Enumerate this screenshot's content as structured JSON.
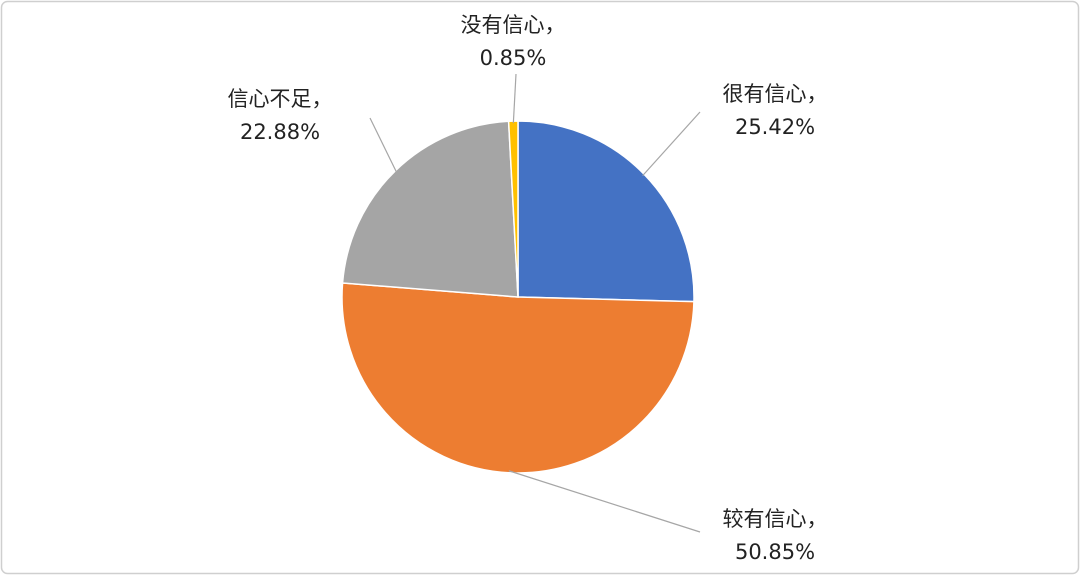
{
  "chart_data": {
    "type": "pie",
    "categories": [
      "很有信心，",
      "较有信心，",
      "信心不足，",
      "没有信心，"
    ],
    "values": [
      25.42,
      50.85,
      22.88,
      0.85
    ],
    "value_labels": [
      "25.42%",
      "50.85%",
      "22.88%",
      "0.85%"
    ],
    "colors": [
      "#4472c4",
      "#ed7d31",
      "#a5a5a5",
      "#ffc000"
    ]
  }
}
